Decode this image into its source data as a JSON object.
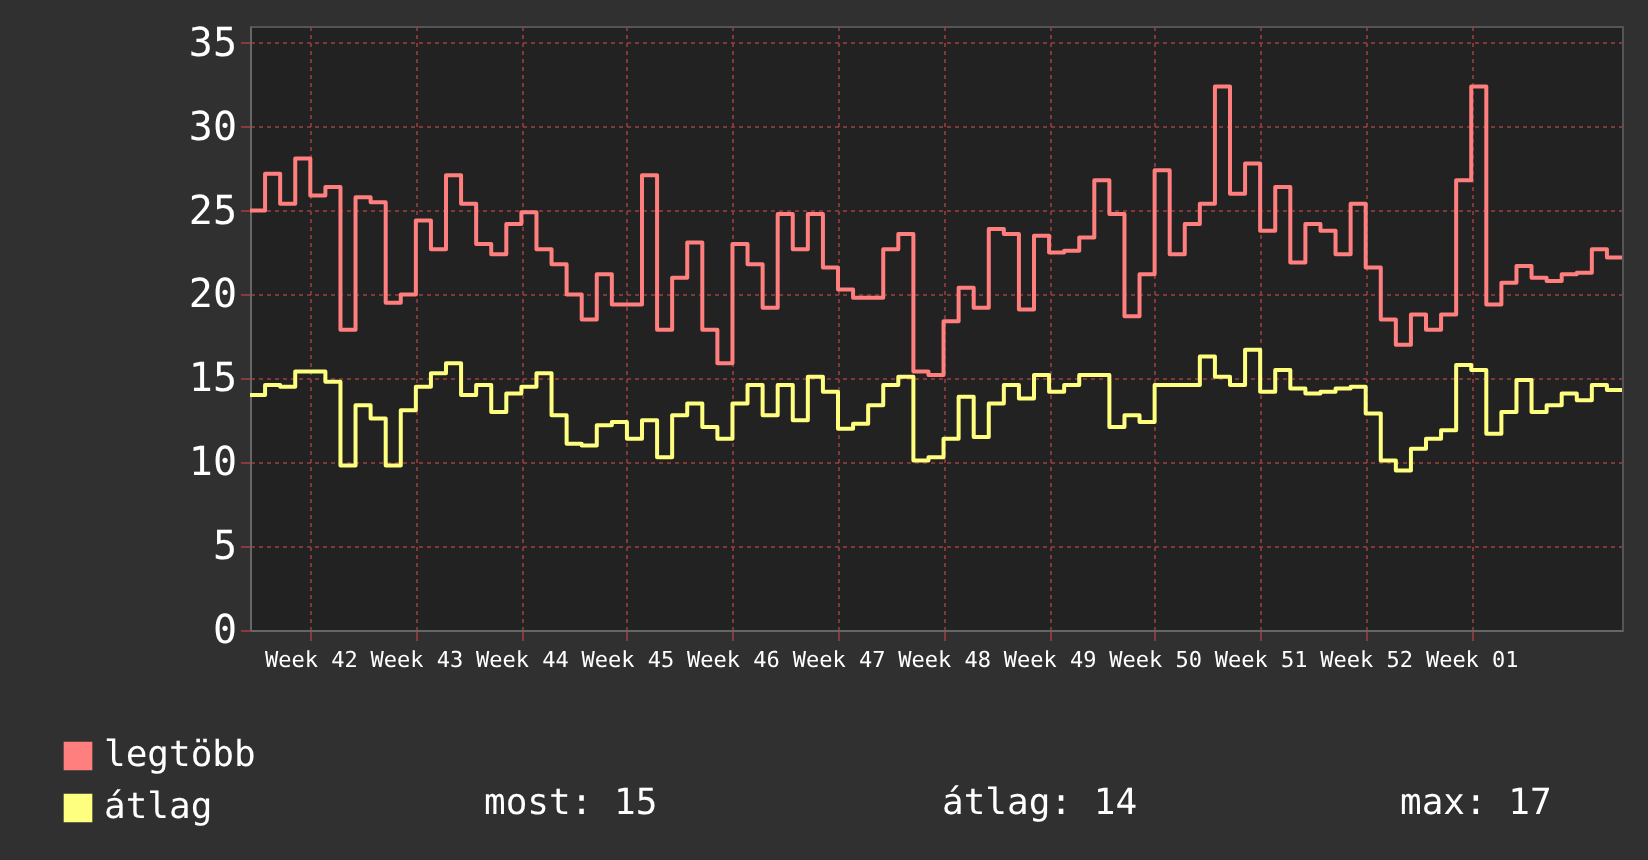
{
  "chart_data": {
    "type": "step",
    "categories": [
      null,
      null,
      null,
      null,
      "Week 42",
      null,
      null,
      null,
      null,
      null,
      null,
      "Week 43",
      null,
      null,
      null,
      null,
      null,
      null,
      "Week 44",
      null,
      null,
      null,
      null,
      null,
      null,
      "Week 45",
      null,
      null,
      null,
      null,
      null,
      null,
      "Week 46",
      null,
      null,
      null,
      null,
      null,
      null,
      "Week 47",
      null,
      null,
      null,
      null,
      null,
      null,
      "Week 48",
      null,
      null,
      null,
      null,
      null,
      null,
      "Week 49",
      null,
      null,
      null,
      null,
      null,
      null,
      "Week 50",
      null,
      null,
      null,
      null,
      null,
      null,
      "Week 51",
      null,
      null,
      null,
      null,
      null,
      null,
      "Week 52",
      null,
      null,
      null,
      null,
      null,
      null,
      "Week 01",
      null,
      null,
      null,
      null,
      null,
      null,
      null,
      null,
      null,
      null
    ],
    "series": [
      {
        "name": "legtöbb",
        "color": "#ff7f7f",
        "values": [
          25.0,
          27.2,
          25.4,
          28.1,
          25.9,
          26.4,
          17.9,
          25.8,
          25.5,
          19.5,
          20.0,
          24.4,
          22.7,
          27.1,
          25.4,
          23.0,
          22.4,
          24.2,
          24.9,
          22.7,
          21.8,
          20.0,
          18.5,
          21.2,
          19.4,
          19.4,
          27.1,
          17.9,
          21.0,
          23.1,
          17.9,
          15.9,
          23.0,
          21.8,
          19.2,
          24.8,
          22.7,
          24.8,
          21.6,
          20.3,
          19.8,
          19.8,
          22.7,
          23.6,
          15.4,
          15.2,
          18.4,
          20.4,
          19.2,
          23.9,
          23.6,
          19.1,
          23.5,
          22.5,
          22.6,
          23.4,
          26.8,
          24.8,
          18.7,
          21.2,
          27.4,
          22.4,
          24.2,
          25.4,
          32.4,
          26.0,
          27.8,
          23.8,
          26.4,
          21.9,
          24.2,
          23.8,
          22.4,
          25.4,
          21.6,
          18.5,
          17.0,
          18.8,
          17.9,
          18.8,
          26.8,
          32.4,
          19.4,
          20.7,
          21.7,
          21.0,
          20.8,
          21.2,
          21.3,
          22.7,
          22.2,
          22.2
        ]
      },
      {
        "name": "átlag",
        "color": "#ffff7f",
        "values": [
          14.0,
          14.6,
          14.5,
          15.4,
          15.4,
          14.8,
          9.8,
          13.4,
          12.6,
          9.8,
          13.1,
          14.5,
          15.3,
          15.9,
          14.0,
          14.6,
          13.0,
          14.1,
          14.5,
          15.3,
          12.8,
          11.1,
          11.0,
          12.2,
          12.4,
          11.4,
          12.5,
          10.3,
          12.8,
          13.5,
          12.1,
          11.4,
          13.5,
          14.6,
          12.8,
          14.6,
          12.5,
          15.1,
          14.2,
          12.0,
          12.3,
          13.4,
          14.6,
          15.1,
          10.1,
          10.3,
          11.4,
          13.9,
          11.5,
          13.5,
          14.6,
          13.8,
          15.2,
          14.2,
          14.6,
          15.2,
          15.2,
          12.1,
          12.8,
          12.4,
          14.6,
          14.6,
          14.6,
          16.3,
          15.1,
          14.6,
          16.7,
          14.2,
          15.5,
          14.4,
          14.1,
          14.2,
          14.4,
          14.5,
          12.9,
          10.1,
          9.5,
          10.8,
          11.4,
          11.9,
          15.8,
          15.5,
          11.7,
          13.0,
          14.9,
          13.0,
          13.4,
          14.1,
          13.7,
          14.6,
          14.3,
          14.3
        ]
      }
    ],
    "ylim": [
      0,
      36
    ],
    "yticks": [
      0,
      5,
      10,
      15,
      20,
      25,
      30,
      35
    ],
    "grid": true,
    "legend": "bottom left",
    "line_style": "solid",
    "marker": "none",
    "annotations": [
      "most: 15",
      "átlag: 14",
      "max: 17"
    ]
  }
}
